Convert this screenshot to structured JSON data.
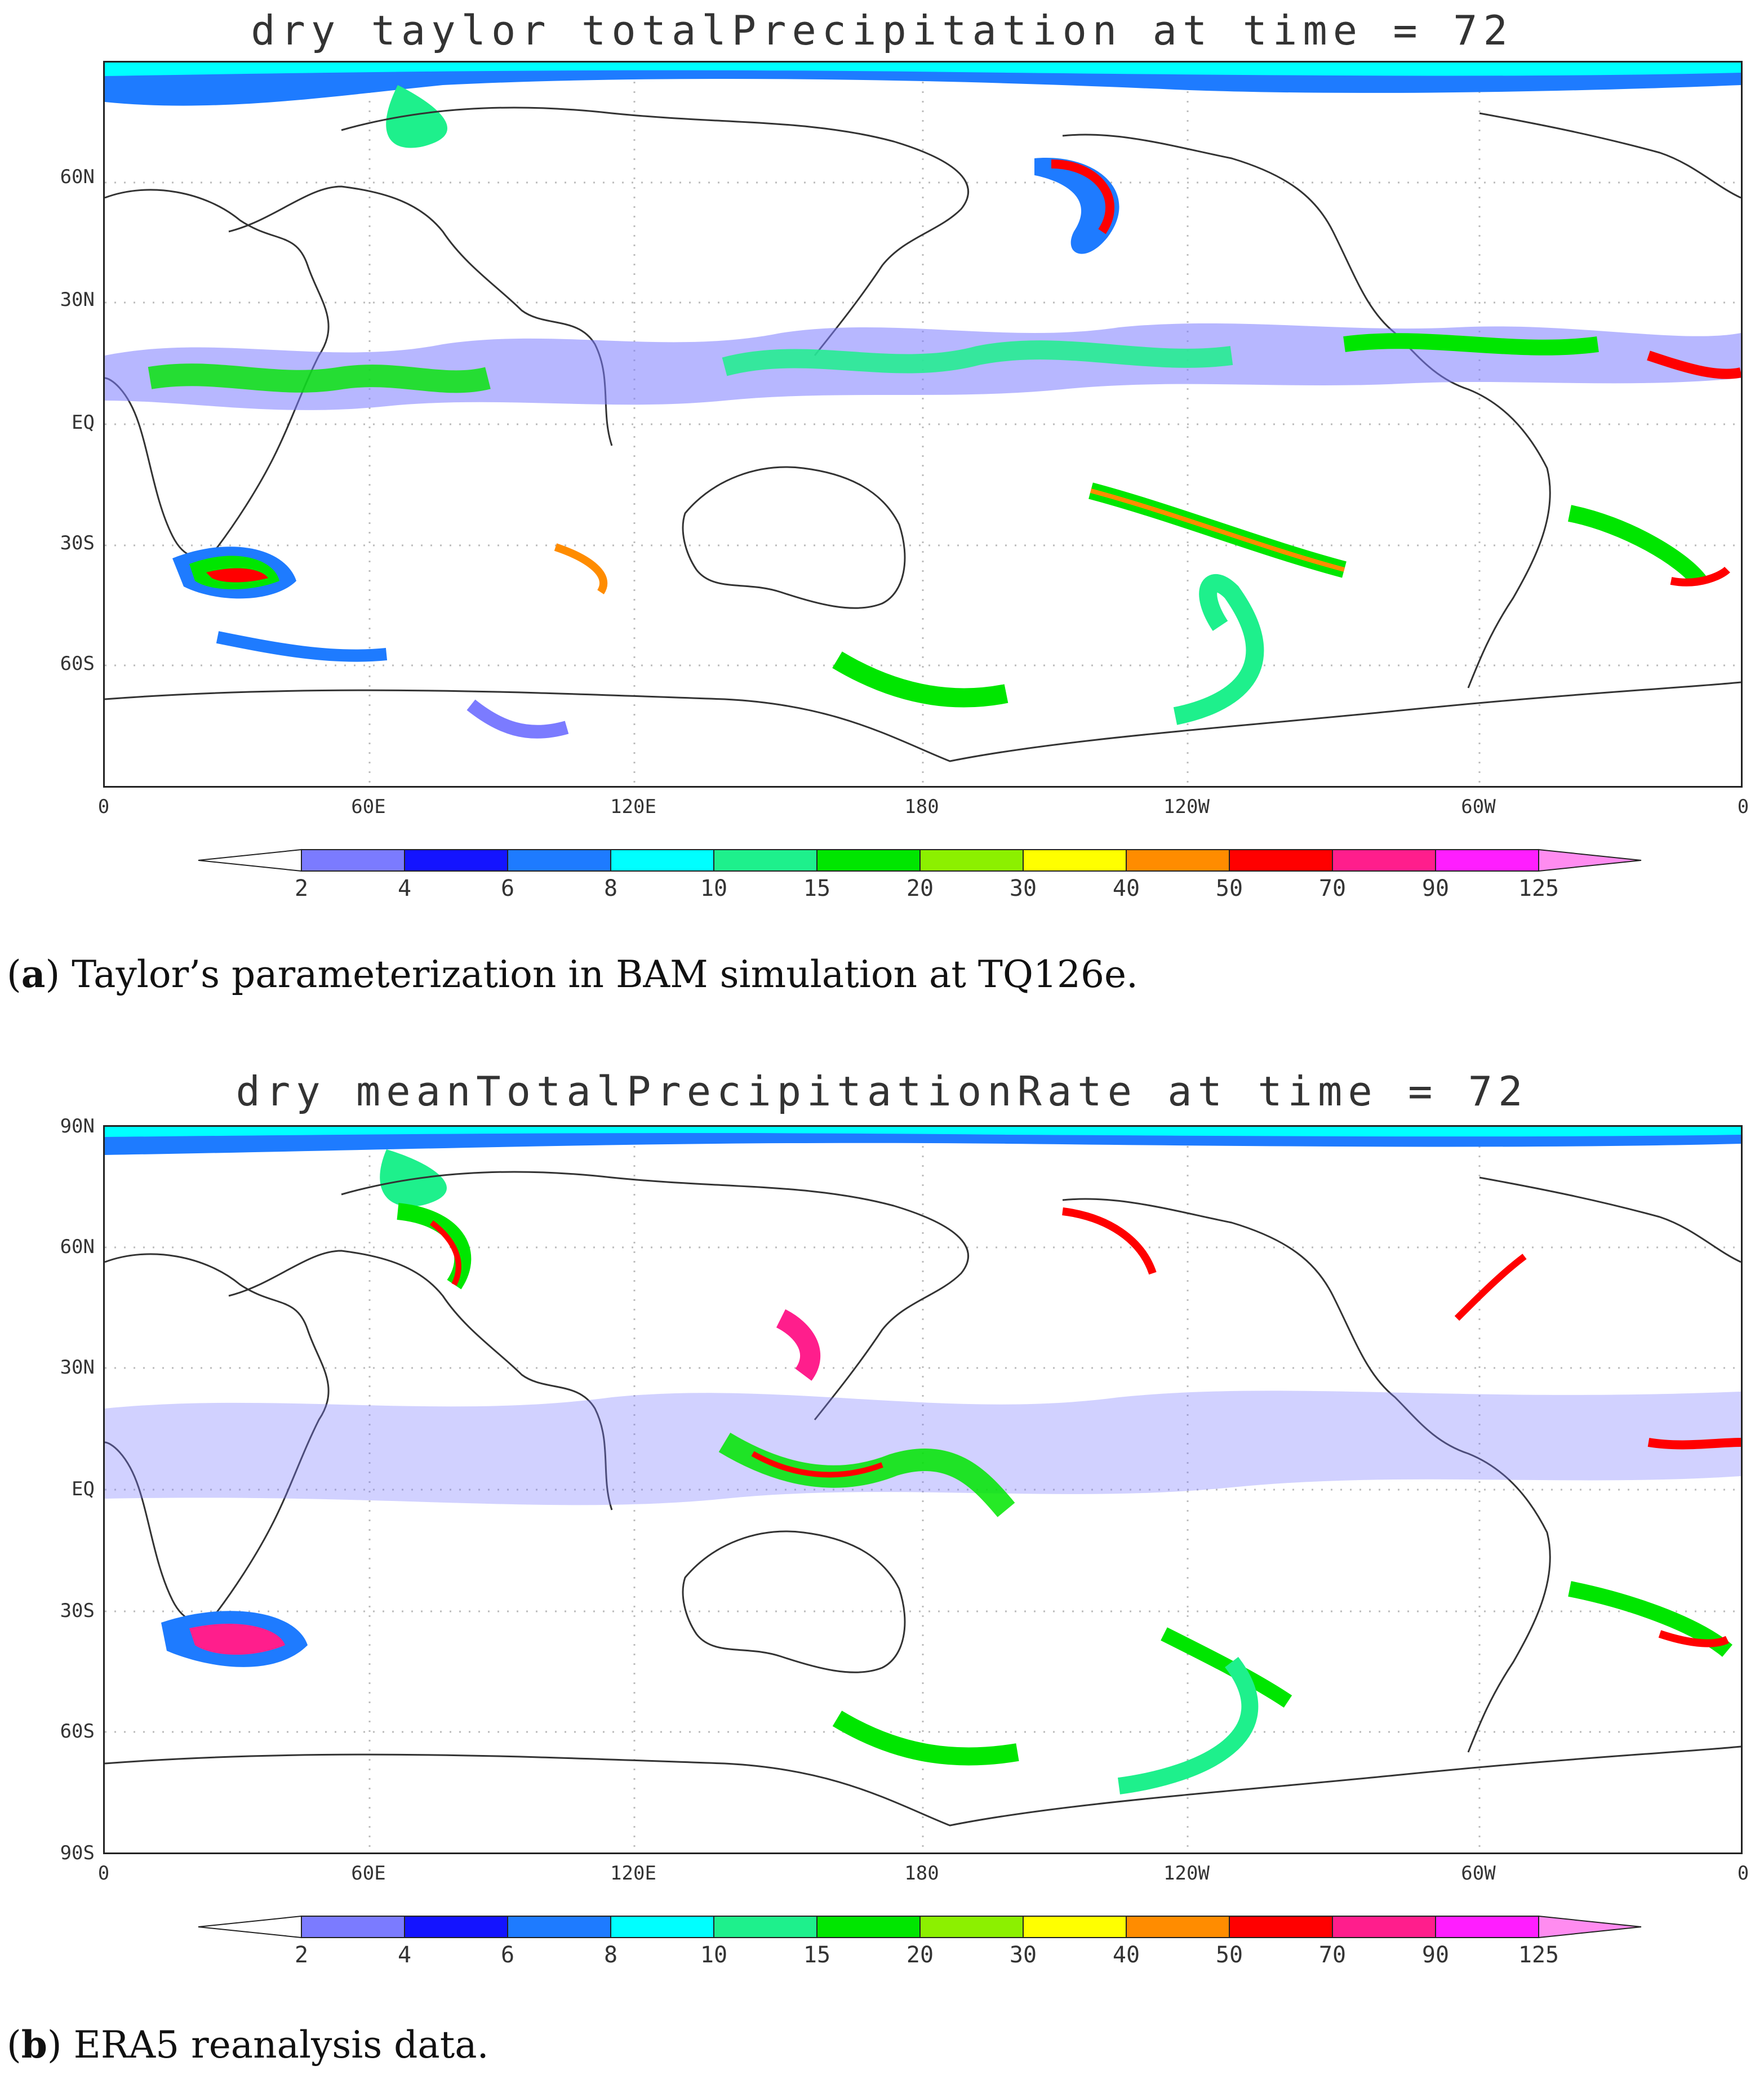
{
  "colorbar": {
    "levels": [
      "2",
      "4",
      "6",
      "8",
      "10",
      "15",
      "20",
      "30",
      "40",
      "50",
      "70",
      "90",
      "125"
    ],
    "colors": [
      "#7b7bff",
      "#1414ff",
      "#1e7bff",
      "#00ffff",
      "#1ef08c",
      "#00e600",
      "#8cf000",
      "#ffff00",
      "#ff8c00",
      "#ff0000",
      "#ff1e8c",
      "#ff1eff"
    ],
    "overflow_color": "#ff8cf0",
    "underflow_color": "#ffffff"
  },
  "panel_a": {
    "title": "dry taylor totalPrecipitation at time = 72",
    "caption_tag": "a",
    "caption_text": " Taylor’s parameterization in BAM simulation at TQ126e.",
    "lat_labels": [
      "60N",
      "30N",
      "EQ",
      "30S",
      "60S"
    ],
    "lon_labels": [
      "0",
      "60E",
      "120E",
      "180",
      "120W",
      "60W",
      "0"
    ]
  },
  "panel_b": {
    "title": "dry meanTotalPrecipitationRate at time = 72",
    "caption_tag": "b",
    "caption_text": " ERA5 reanalysis data.",
    "lat_labels": [
      "90N",
      "60N",
      "30N",
      "EQ",
      "30S",
      "60S",
      "90S"
    ],
    "lon_labels": [
      "0",
      "60E",
      "120E",
      "180",
      "120W",
      "60W",
      "0"
    ]
  }
}
